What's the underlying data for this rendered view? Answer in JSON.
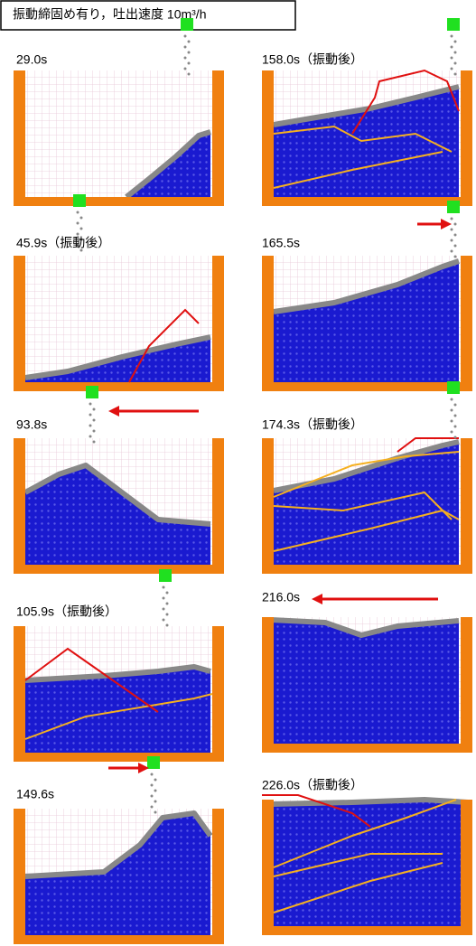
{
  "header": {
    "title": "振動締固め有り，吐出速度 10m³/h"
  },
  "panels": [
    {
      "label": "29.0s"
    },
    {
      "label": "158.0s（振動後）"
    },
    {
      "label": "45.9s（振動後）"
    },
    {
      "label": "165.5s"
    },
    {
      "label": "93.8s"
    },
    {
      "label": "174.3s（振動後）"
    },
    {
      "label": "105.9s（振動後）"
    },
    {
      "label": "216.0s"
    },
    {
      "label": "149.6s"
    },
    {
      "label": "226.0s（振動後）"
    }
  ]
}
